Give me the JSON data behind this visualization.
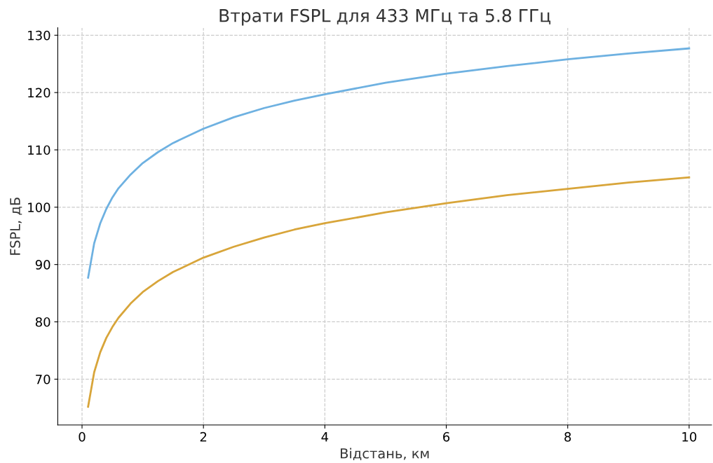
{
  "chart_data": {
    "type": "line",
    "title": "Втрати FSPL для 433 МГц та 5.8 ГГц",
    "xlabel": "Відстань, км",
    "ylabel": "FSPL, дБ",
    "x": [
      0.1,
      0.2,
      0.3,
      0.4,
      0.5,
      0.6,
      0.8,
      1,
      1.25,
      1.5,
      2,
      2.5,
      3,
      3.5,
      4,
      5,
      6,
      7,
      8,
      9,
      10
    ],
    "series": [
      {
        "color": "#6eb1e1",
        "values": [
          87.7,
          93.7,
          97.2,
          99.7,
          101.7,
          103.3,
          105.7,
          107.7,
          109.6,
          111.2,
          113.7,
          115.7,
          117.3,
          118.6,
          119.7,
          121.7,
          123.3,
          124.6,
          125.8,
          126.8,
          127.7
        ]
      },
      {
        "color": "#d8a53a",
        "values": [
          65.2,
          71.2,
          74.7,
          77.2,
          79.1,
          80.7,
          83.2,
          85.2,
          87.1,
          88.7,
          91.2,
          93.1,
          94.7,
          96.1,
          97.2,
          99.1,
          100.7,
          102.1,
          103.2,
          104.3,
          105.2
        ]
      }
    ],
    "xlim": [
      -0.4,
      10.37
    ],
    "ylim": [
      62,
      131.3
    ],
    "xticks": [
      0,
      2,
      4,
      6,
      8,
      10
    ],
    "yticks": [
      70,
      80,
      90,
      100,
      110,
      120,
      130
    ],
    "grid": true,
    "line_style": "solid",
    "marker": "none",
    "legend": false
  }
}
